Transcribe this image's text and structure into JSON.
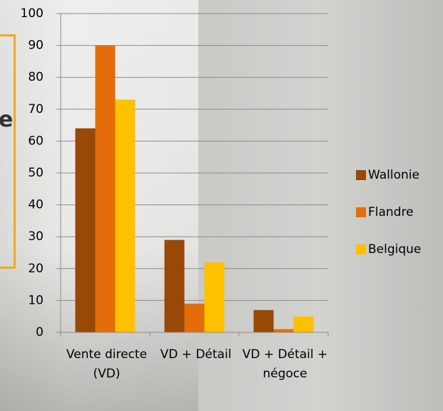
{
  "overlay_text": "e",
  "chart_data": {
    "type": "bar",
    "categories": [
      "Vente directe (VD)",
      "VD + Détail",
      "VD + Détail + négoce"
    ],
    "series": [
      {
        "name": "Wallonie",
        "color": "#984807",
        "values": [
          64,
          29,
          7
        ]
      },
      {
        "name": "Flandre",
        "color": "#E46C0A",
        "values": [
          90,
          9,
          1
        ]
      },
      {
        "name": "Belgique",
        "color": "#FFC000",
        "values": [
          73,
          22,
          5
        ]
      }
    ],
    "ylim": [
      0,
      100
    ],
    "yticks": [
      0,
      10,
      20,
      30,
      40,
      50,
      60,
      70,
      80,
      90,
      100
    ],
    "grid": true,
    "legend": "right"
  }
}
